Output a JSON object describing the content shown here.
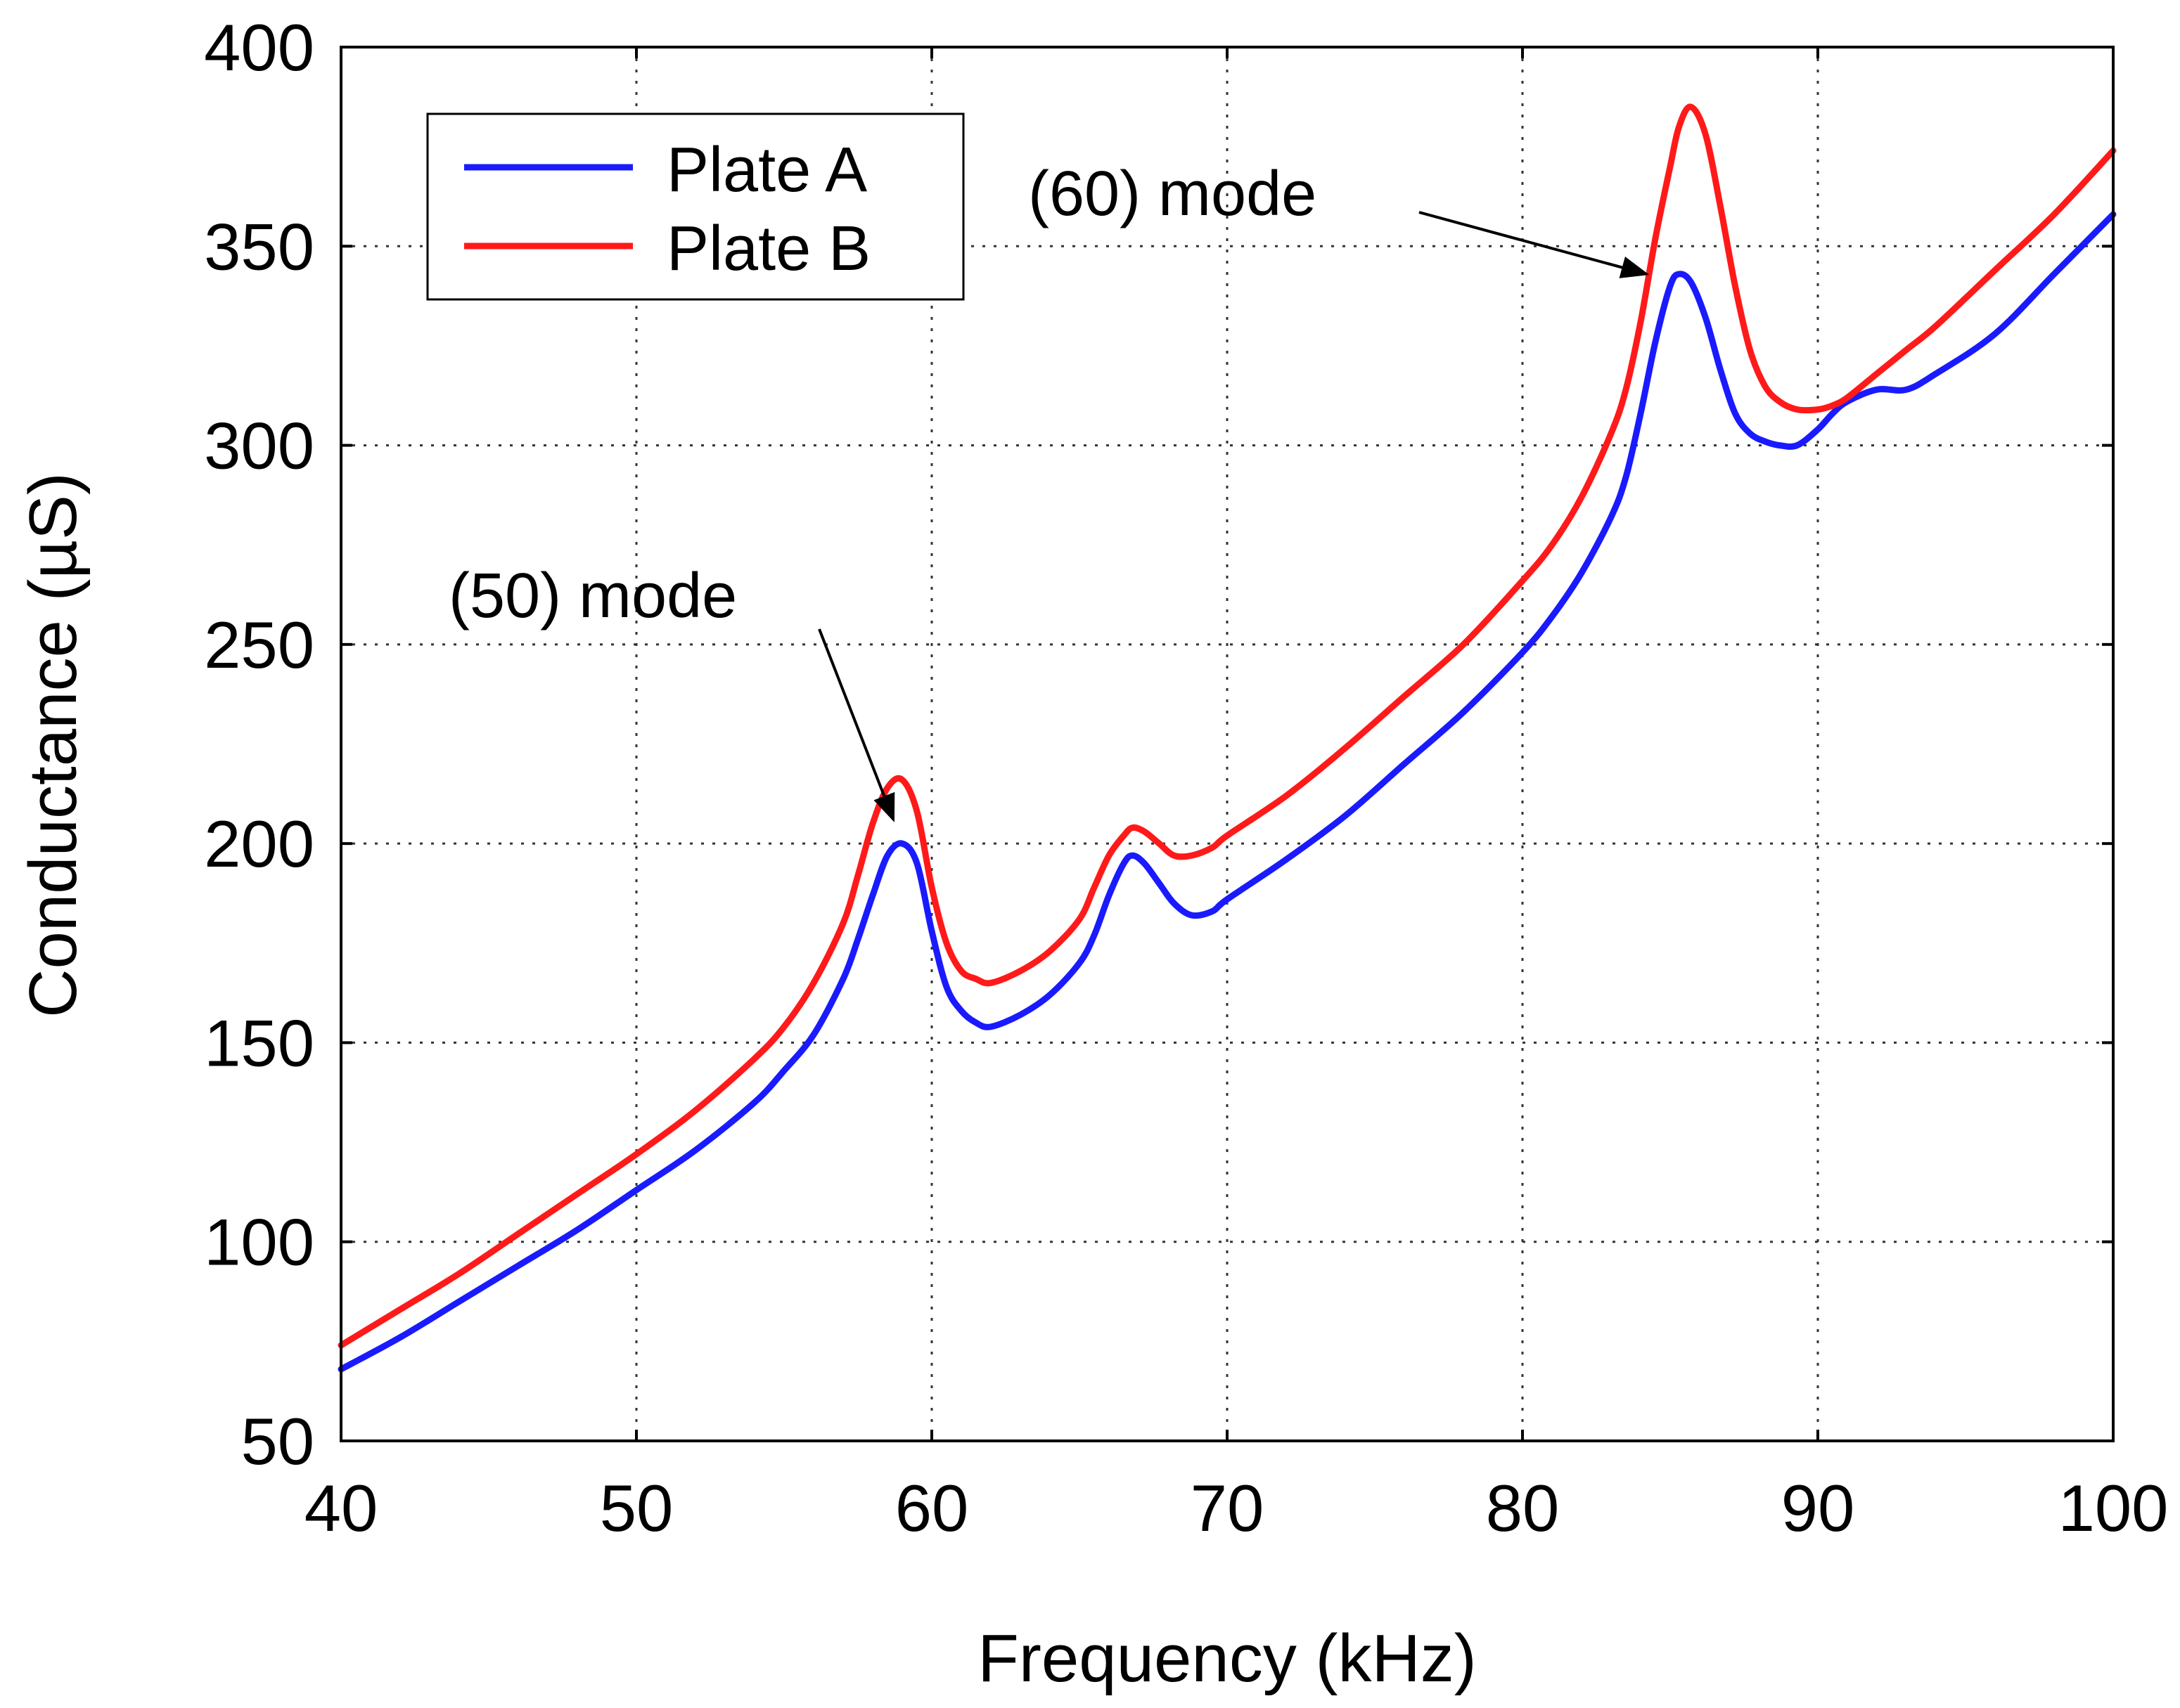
{
  "chart_data": {
    "type": "line",
    "title": "",
    "xlabel": "Frequency (kHz)",
    "ylabel": "Conductance (µS)",
    "xlim": [
      40,
      100
    ],
    "ylim": [
      50,
      400
    ],
    "xticks": [
      40,
      50,
      60,
      70,
      80,
      90,
      100
    ],
    "yticks": [
      50,
      100,
      150,
      200,
      250,
      300,
      350,
      400
    ],
    "grid": true,
    "legend_position": "top-left",
    "series": [
      {
        "name": "Plate A",
        "color": "#1a1aff",
        "x": [
          40,
          42,
          44,
          46,
          48,
          50,
          52,
          54,
          55,
          56,
          57,
          57.5,
          58,
          58.5,
          59,
          59.5,
          60,
          60.5,
          61,
          61.5,
          62,
          63,
          64,
          65,
          65.5,
          66,
          66.5,
          66.8,
          67.2,
          67.7,
          68.2,
          68.8,
          69.5,
          70,
          72,
          74,
          76,
          78,
          80,
          81,
          82,
          83,
          83.5,
          84,
          84.5,
          85,
          85.3,
          85.7,
          86.2,
          86.7,
          87.2,
          87.7,
          88.2,
          88.7,
          89.3,
          90,
          90.5,
          91,
          92,
          93,
          94,
          96,
          98,
          100
        ],
        "values": [
          68,
          76,
          85,
          94,
          103,
          113,
          123,
          135,
          143,
          152,
          166,
          176,
          187,
          197,
          200,
          195,
          178,
          164,
          158,
          155,
          154,
          157,
          162,
          170,
          177,
          187,
          195,
          197,
          195,
          190,
          185,
          182,
          183,
          186,
          196,
          207,
          220,
          233,
          248,
          257,
          268,
          282,
          292,
          308,
          326,
          340,
          343,
          341,
          332,
          319,
          308,
          303,
          301,
          300,
          300,
          304,
          308,
          311,
          314,
          314,
          318,
          328,
          343,
          358
        ]
      },
      {
        "name": "Plate B",
        "color": "#ff1a1a",
        "x": [
          40,
          42,
          44,
          46,
          48,
          50,
          52,
          54,
          55,
          56,
          57,
          57.5,
          58,
          58.5,
          59,
          59.5,
          60,
          60.5,
          61,
          61.5,
          62,
          63,
          64,
          65,
          65.5,
          66,
          66.5,
          66.8,
          67.2,
          67.7,
          68.2,
          68.8,
          69.5,
          70,
          72,
          74,
          76,
          78,
          80,
          81,
          82,
          83,
          83.5,
          84,
          84.5,
          85,
          85.3,
          85.7,
          86.2,
          86.7,
          87.2,
          87.7,
          88.2,
          88.7,
          89.3,
          90,
          90.5,
          91,
          92,
          93,
          94,
          96,
          98,
          100
        ],
        "values": [
          74,
          83,
          92,
          102,
          112,
          122,
          133,
          146,
          154,
          165,
          180,
          192,
          205,
          214,
          216,
          208,
          189,
          175,
          168,
          166,
          165,
          168,
          173,
          181,
          189,
          197,
          202,
          204,
          203,
          200,
          197,
          197,
          199,
          202,
          212,
          224,
          237,
          250,
          266,
          275,
          287,
          303,
          314,
          331,
          352,
          370,
          380,
          385,
          378,
          360,
          340,
          324,
          315,
          311,
          309,
          309,
          310,
          312,
          318,
          324,
          330,
          344,
          358,
          374
        ]
      }
    ],
    "annotations": [
      {
        "text": "(50) mode",
        "x": 58.7,
        "y": 206,
        "series": "Plate B"
      },
      {
        "text": "(60) mode",
        "x": 84.2,
        "y": 343,
        "series": "Plate B"
      }
    ]
  }
}
